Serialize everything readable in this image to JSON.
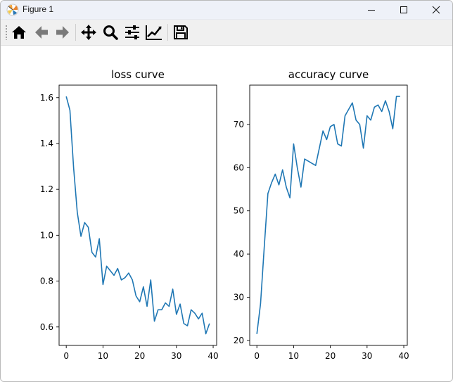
{
  "window": {
    "title": "Figure 1",
    "controls": {
      "minimize": "minimize",
      "maximize": "maximize",
      "close": "close"
    }
  },
  "toolbar": {
    "tools": [
      {
        "name": "home",
        "icon": "home-icon"
      },
      {
        "name": "back",
        "icon": "arrow-left-icon"
      },
      {
        "name": "forward",
        "icon": "arrow-right-icon"
      },
      {
        "name": "pan",
        "icon": "move-icon"
      },
      {
        "name": "zoom",
        "icon": "magnifier-icon"
      },
      {
        "name": "configure-subplots",
        "icon": "sliders-icon"
      },
      {
        "name": "edit-axis",
        "icon": "line-chart-icon"
      },
      {
        "name": "save",
        "icon": "floppy-disk-icon"
      }
    ]
  },
  "chart_data": [
    {
      "type": "line",
      "title": "loss curve",
      "xlabel": "",
      "ylabel": "",
      "xlim": [
        -1.95,
        40.95
      ],
      "ylim": [
        0.5195,
        1.6545
      ],
      "xticks": [
        0,
        10,
        20,
        30,
        40
      ],
      "yticks": [
        0.6,
        0.8,
        1.0,
        1.2,
        1.4,
        1.6
      ],
      "ytick_labels": [
        "0.6",
        "0.8",
        "1.0",
        "1.2",
        "1.4",
        "1.6"
      ],
      "color": "#1f77b4",
      "series": [
        {
          "x": [
            0,
            1,
            2,
            3,
            4,
            5,
            6,
            7,
            8,
            9,
            10,
            11,
            12,
            13,
            14,
            15,
            16,
            17,
            18,
            19,
            20,
            21,
            22,
            23,
            24,
            25,
            26,
            27,
            28,
            29,
            30,
            31,
            32,
            33,
            34,
            35,
            36,
            37,
            38,
            39
          ],
          "values": [
            1.605,
            1.545,
            1.295,
            1.1,
            0.995,
            1.055,
            1.035,
            0.925,
            0.905,
            0.985,
            0.785,
            0.865,
            0.845,
            0.825,
            0.855,
            0.805,
            0.815,
            0.835,
            0.805,
            0.735,
            0.71,
            0.775,
            0.69,
            0.805,
            0.625,
            0.675,
            0.675,
            0.705,
            0.69,
            0.765,
            0.655,
            0.7,
            0.615,
            0.605,
            0.675,
            0.66,
            0.635,
            0.66,
            0.57,
            0.615
          ]
        }
      ]
    },
    {
      "type": "line",
      "title": "accuracy curve",
      "xlabel": "",
      "ylabel": "",
      "xlim": [
        -1.95,
        40.95
      ],
      "ylim": [
        18.85,
        79.1
      ],
      "xticks": [
        0,
        10,
        20,
        30,
        40
      ],
      "yticks": [
        20,
        30,
        40,
        50,
        60,
        70
      ],
      "ytick_labels": [
        "20",
        "30",
        "40",
        "50",
        "60",
        "70"
      ],
      "color": "#1f77b4",
      "series": [
        {
          "x": [
            0,
            1,
            2,
            3,
            4,
            5,
            6,
            7,
            8,
            9,
            10,
            11,
            12,
            13,
            14,
            15,
            16,
            17,
            18,
            19,
            20,
            21,
            22,
            23,
            24,
            25,
            26,
            27,
            28,
            29,
            30,
            31,
            32,
            33,
            34,
            35,
            36,
            37,
            38,
            39
          ],
          "values": [
            21.5,
            28.5,
            41.5,
            54,
            56.5,
            58.5,
            56,
            59.5,
            55.5,
            53,
            65.5,
            60,
            55.5,
            62,
            61.5,
            61,
            60.5,
            64.5,
            68.5,
            66.5,
            69.5,
            70,
            65.5,
            65,
            72,
            73.5,
            75,
            71,
            70,
            64.5,
            72,
            71,
            74,
            74.5,
            73,
            75.5,
            73,
            69,
            76.5,
            76.5
          ]
        }
      ]
    }
  ]
}
